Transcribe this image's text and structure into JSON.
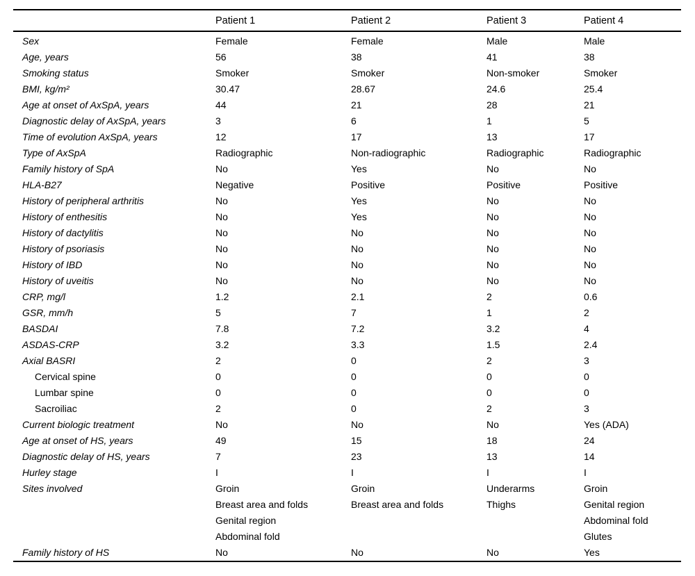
{
  "table": {
    "columns": [
      "",
      "Patient 1",
      "Patient 2",
      "Patient 3",
      "Patient 4"
    ],
    "rows": [
      {
        "label": "Sex",
        "sub": false,
        "values": [
          "Female",
          "Female",
          "Male",
          "Male"
        ]
      },
      {
        "label": "Age, years",
        "sub": false,
        "values": [
          "56",
          "38",
          "41",
          "38"
        ]
      },
      {
        "label": "Smoking status",
        "sub": false,
        "values": [
          "Smoker",
          "Smoker",
          "Non-smoker",
          "Smoker"
        ]
      },
      {
        "label": "BMI, kg/m²",
        "sub": false,
        "values": [
          "30.47",
          "28.67",
          "24.6",
          "25.4"
        ]
      },
      {
        "label": "Age at onset of AxSpA, years",
        "sub": false,
        "values": [
          "44",
          "21",
          "28",
          "21"
        ]
      },
      {
        "label": "Diagnostic delay of AxSpA, years",
        "sub": false,
        "values": [
          "3",
          "6",
          "1",
          "5"
        ]
      },
      {
        "label": "Time of evolution AxSpA, years",
        "sub": false,
        "values": [
          "12",
          "17",
          "13",
          "17"
        ]
      },
      {
        "label": "Type of AxSpA",
        "sub": false,
        "values": [
          "Radiographic",
          "Non-radiographic",
          "Radiographic",
          "Radiographic"
        ]
      },
      {
        "label": "Family history of SpA",
        "sub": false,
        "values": [
          "No",
          "Yes",
          "No",
          "No"
        ]
      },
      {
        "label": "HLA-B27",
        "sub": false,
        "values": [
          "Negative",
          "Positive",
          "Positive",
          "Positive"
        ]
      },
      {
        "label": "History of peripheral arthritis",
        "sub": false,
        "values": [
          "No",
          "Yes",
          "No",
          "No"
        ]
      },
      {
        "label": "History of enthesitis",
        "sub": false,
        "values": [
          "No",
          "Yes",
          "No",
          "No"
        ]
      },
      {
        "label": "History of dactylitis",
        "sub": false,
        "values": [
          "No",
          "No",
          "No",
          "No"
        ]
      },
      {
        "label": "History of psoriasis",
        "sub": false,
        "values": [
          "No",
          "No",
          "No",
          "No"
        ]
      },
      {
        "label": "History of IBD",
        "sub": false,
        "values": [
          "No",
          "No",
          "No",
          "No"
        ]
      },
      {
        "label": "History of uveitis",
        "sub": false,
        "values": [
          "No",
          "No",
          "No",
          "No"
        ]
      },
      {
        "label": "CRP, mg/l",
        "sub": false,
        "values": [
          "1.2",
          "2.1",
          "2",
          "0.6"
        ]
      },
      {
        "label": "GSR, mm/h",
        "sub": false,
        "values": [
          "5",
          "7",
          "1",
          "2"
        ]
      },
      {
        "label": "BASDAI",
        "sub": false,
        "values": [
          "7.8",
          "7.2",
          "3.2",
          "4"
        ]
      },
      {
        "label": "ASDAS-CRP",
        "sub": false,
        "values": [
          "3.2",
          "3.3",
          "1.5",
          "2.4"
        ]
      },
      {
        "label": "Axial BASRI",
        "sub": false,
        "values": [
          "2",
          "0",
          "2",
          "3"
        ]
      },
      {
        "label": "Cervical spine",
        "sub": true,
        "values": [
          "0",
          "0",
          "0",
          "0"
        ]
      },
      {
        "label": "Lumbar spine",
        "sub": true,
        "values": [
          "0",
          "0",
          "0",
          "0"
        ]
      },
      {
        "label": "Sacroiliac",
        "sub": true,
        "values": [
          "2",
          "0",
          "2",
          "3"
        ]
      },
      {
        "label": "Current biologic treatment",
        "sub": false,
        "values": [
          "No",
          "No",
          "No",
          "Yes (ADA)"
        ]
      },
      {
        "label": "Age at onset of HS, years",
        "sub": false,
        "values": [
          "49",
          "15",
          "18",
          "24"
        ]
      },
      {
        "label": "Diagnostic delay of HS, years",
        "sub": false,
        "values": [
          "7",
          "23",
          "13",
          "14"
        ]
      },
      {
        "label": "Hurley stage",
        "sub": false,
        "values": [
          "I",
          "I",
          "I",
          "I"
        ]
      },
      {
        "label": "Sites involved",
        "sub": false,
        "values": [
          "Groin\nBreast area and folds\nGenital region\nAbdominal fold",
          "Groin\nBreast area and folds",
          "Underarms\nThighs",
          "Groin\nGenital region\nAbdominal fold\nGlutes"
        ]
      },
      {
        "label": "Family history of HS",
        "sub": false,
        "values": [
          "No",
          "No",
          "No",
          "Yes"
        ]
      }
    ]
  },
  "colors": {
    "text": "#000000",
    "background": "#ffffff",
    "rule": "#000000"
  }
}
